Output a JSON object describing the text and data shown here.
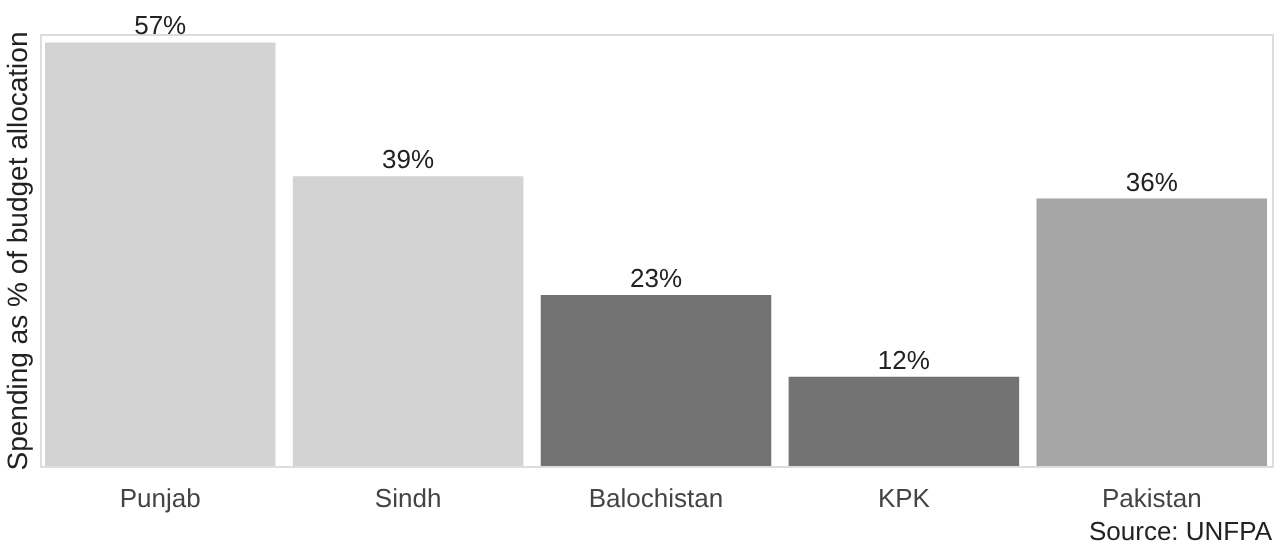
{
  "chart_data": {
    "type": "bar",
    "ylabel": "Spending as % of budget allocation",
    "categories": [
      "Punjab",
      "Sindh",
      "Balochistan",
      "KPK",
      "Pakistan"
    ],
    "values": [
      57,
      39,
      23,
      12,
      36
    ],
    "colors": [
      "#d3d3d3",
      "#d3d3d3",
      "#737373",
      "#737373",
      "#a6a6a6"
    ],
    "value_labels": [
      "57%",
      "39%",
      "23%",
      "12%",
      "36%"
    ],
    "annotations": [
      "Source: UNFPA"
    ],
    "grid": false,
    "tick_labels": "x"
  }
}
